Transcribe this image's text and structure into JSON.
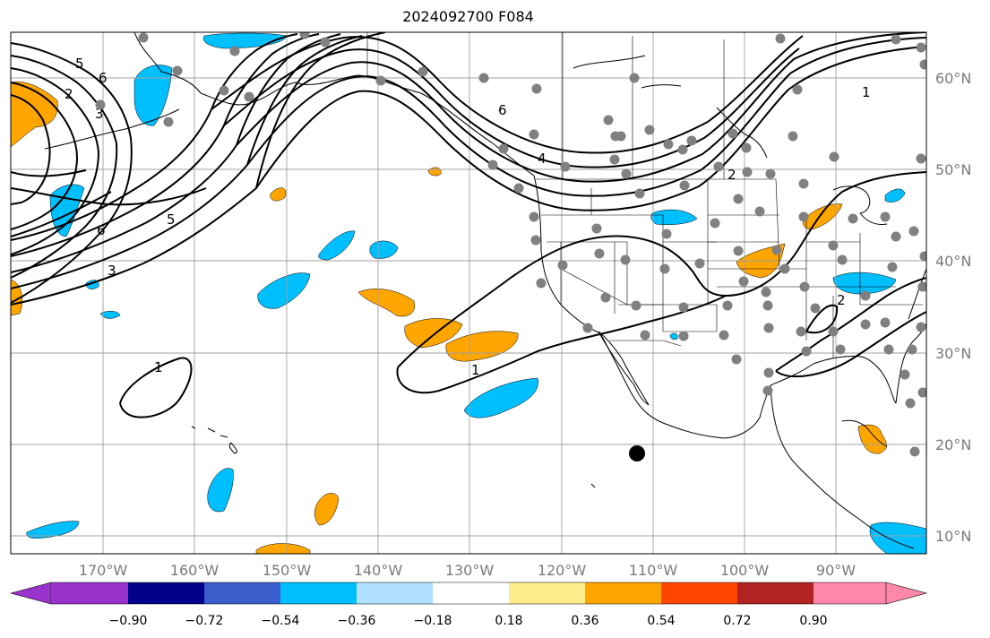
{
  "map": {
    "title": "2024092700 F084",
    "lon_labels": [
      "170°W",
      "160°W",
      "150°W",
      "140°W",
      "130°W",
      "120°W",
      "110°W",
      "100°W",
      "90°W"
    ],
    "lat_labels": [
      "60°N",
      "50°N",
      "40°N",
      "30°N",
      "20°N",
      "10°N"
    ],
    "contour_labels": [
      "1",
      "2",
      "3",
      "4",
      "5",
      "6"
    ],
    "colorbar": {
      "ticks": [
        "−0.90",
        "−0.72",
        "−0.54",
        "−0.36",
        "−0.18",
        "0.18",
        "0.36",
        "0.54",
        "0.72",
        "0.90"
      ],
      "colors": [
        "#9933cc",
        "#00008b",
        "#3a5fcd",
        "#00bfff",
        "#b0e2ff",
        "#ffffff",
        "#ffec8b",
        "#ffa500",
        "#ff4500",
        "#b22222",
        "#ff88aa"
      ]
    },
    "colors": {
      "positive": "#ffa500",
      "negative": "#00bfff",
      "station": "#808080",
      "marker": "#000000"
    }
  }
}
